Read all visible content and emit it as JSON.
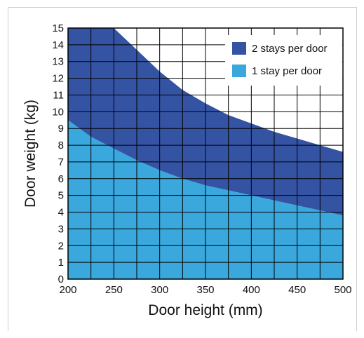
{
  "chart_data": {
    "type": "area",
    "xlabel": "Door height (mm)",
    "ylabel": "Door weight (kg)",
    "xlim": [
      200,
      500
    ],
    "ylim": [
      0,
      15
    ],
    "x_ticks": [
      200,
      250,
      300,
      350,
      400,
      450,
      500
    ],
    "y_ticks": [
      0,
      1,
      2,
      3,
      4,
      5,
      6,
      7,
      8,
      9,
      10,
      11,
      12,
      13,
      14,
      15
    ],
    "grid": true,
    "legend_position": "top-right",
    "x": [
      200,
      225,
      250,
      275,
      300,
      325,
      350,
      375,
      400,
      425,
      450,
      475,
      500
    ],
    "series": [
      {
        "name": "2 stays per door",
        "color": "#3553a3",
        "values": [
          15,
          15,
          15,
          13.7,
          12.4,
          11.3,
          10.5,
          9.8,
          9.3,
          8.8,
          8.4,
          8.0,
          7.6
        ]
      },
      {
        "name": "1 stay per door",
        "color": "#3aa8dc",
        "values": [
          9.5,
          8.5,
          7.8,
          7.1,
          6.5,
          6.0,
          5.6,
          5.3,
          5.0,
          4.7,
          4.4,
          4.1,
          3.8
        ]
      }
    ]
  }
}
